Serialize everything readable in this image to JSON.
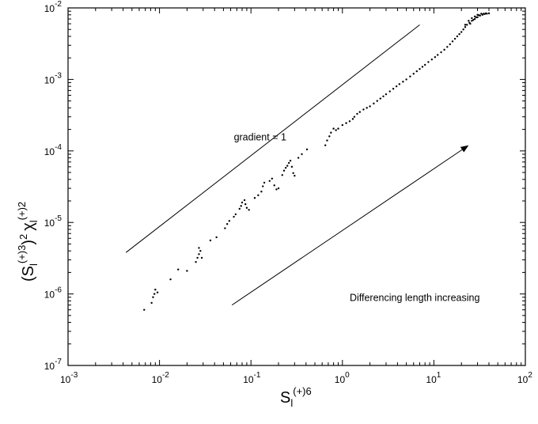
{
  "chart_data": {
    "type": "scatter",
    "title": "",
    "xscale": "log",
    "yscale": "log",
    "xlim": [
      0.001,
      100
    ],
    "ylim": [
      1e-07,
      0.01
    ],
    "grid": false,
    "legend": "none",
    "xlabel": {
      "base": "S",
      "sub": "l",
      "sup": "(+)6"
    },
    "ylabel": {
      "parts": [
        "(S",
        "l",
        "(+)3",
        ")",
        "2",
        "χ",
        "l",
        "(+)2"
      ]
    },
    "x_ticks": [
      {
        "value": 0.001,
        "mant": "10",
        "exp": "-3"
      },
      {
        "value": 0.01,
        "mant": "10",
        "exp": "-2"
      },
      {
        "value": 0.1,
        "mant": "10",
        "exp": "-1"
      },
      {
        "value": 1,
        "mant": "10",
        "exp": "0"
      },
      {
        "value": 10,
        "mant": "10",
        "exp": "1"
      },
      {
        "value": 100,
        "mant": "10",
        "exp": "2"
      }
    ],
    "y_ticks": [
      {
        "value": 1e-07,
        "mant": "10",
        "exp": "-7"
      },
      {
        "value": 1e-06,
        "mant": "10",
        "exp": "-6"
      },
      {
        "value": 1e-05,
        "mant": "10",
        "exp": "-5"
      },
      {
        "value": 0.0001,
        "mant": "10",
        "exp": "-4"
      },
      {
        "value": 0.001,
        "mant": "10",
        "exp": "-3"
      },
      {
        "value": 0.01,
        "mant": "10",
        "exp": "-2"
      }
    ],
    "series": [
      {
        "points": [
          [
            0.0068,
            6e-07
          ],
          [
            0.0082,
            7.5e-07
          ],
          [
            0.0085,
            9e-07
          ],
          [
            0.0088,
            1e-06
          ],
          [
            0.009,
            1.15e-06
          ],
          [
            0.0095,
            1.05e-06
          ],
          [
            0.0132,
            1.6e-06
          ],
          [
            0.016,
            2.2e-06
          ],
          [
            0.02,
            2.1e-06
          ],
          [
            0.025,
            2.8e-06
          ],
          [
            0.026,
            3.2e-06
          ],
          [
            0.027,
            3.6e-06
          ],
          [
            0.027,
            4.4e-06
          ],
          [
            0.028,
            4e-06
          ],
          [
            0.029,
            3.2e-06
          ],
          [
            0.036,
            5.6e-06
          ],
          [
            0.042,
            6.2e-06
          ],
          [
            0.052,
            8.3e-06
          ],
          [
            0.055,
            9.5e-06
          ],
          [
            0.058,
            1.05e-05
          ],
          [
            0.065,
            1.2e-05
          ],
          [
            0.068,
            1.3e-05
          ],
          [
            0.075,
            1.55e-05
          ],
          [
            0.078,
            1.7e-05
          ],
          [
            0.08,
            1.9e-05
          ],
          [
            0.085,
            2.05e-05
          ],
          [
            0.087,
            1.8e-05
          ],
          [
            0.09,
            1.6e-05
          ],
          [
            0.095,
            1.5e-05
          ],
          [
            0.11,
            2.2e-05
          ],
          [
            0.12,
            2.4e-05
          ],
          [
            0.13,
            2.7e-05
          ],
          [
            0.135,
            3.2e-05
          ],
          [
            0.14,
            3.6e-05
          ],
          [
            0.16,
            3.8e-05
          ],
          [
            0.17,
            4.1e-05
          ],
          [
            0.18,
            3.3e-05
          ],
          [
            0.19,
            2.9e-05
          ],
          [
            0.2,
            3e-05
          ],
          [
            0.22,
            4.6e-05
          ],
          [
            0.23,
            5.3e-05
          ],
          [
            0.24,
            5.8e-05
          ],
          [
            0.25,
            6.2e-05
          ],
          [
            0.26,
            6.8e-05
          ],
          [
            0.27,
            7.3e-05
          ],
          [
            0.28,
            6e-05
          ],
          [
            0.29,
            4.9e-05
          ],
          [
            0.3,
            4.5e-05
          ],
          [
            0.33,
            8e-05
          ],
          [
            0.36,
            9e-05
          ],
          [
            0.41,
            0.000105
          ],
          [
            0.65,
            0.00012
          ],
          [
            0.68,
            0.00014
          ],
          [
            0.72,
            0.00016
          ],
          [
            0.75,
            0.00018
          ],
          [
            0.8,
            0.000205
          ],
          [
            0.85,
            0.000195
          ],
          [
            0.9,
            0.000205
          ],
          [
            1.0,
            0.00023
          ],
          [
            1.1,
            0.000245
          ],
          [
            1.2,
            0.00026
          ],
          [
            1.3,
            0.00028
          ],
          [
            1.35,
            0.0003
          ],
          [
            1.45,
            0.00033
          ],
          [
            1.55,
            0.00035
          ],
          [
            1.7,
            0.00038
          ],
          [
            1.85,
            0.0004
          ],
          [
            2.0,
            0.00042
          ],
          [
            2.2,
            0.00046
          ],
          [
            2.4,
            0.0005
          ],
          [
            2.6,
            0.00054
          ],
          [
            2.8,
            0.00058
          ],
          [
            3.0,
            0.00062
          ],
          [
            3.3,
            0.00068
          ],
          [
            3.6,
            0.00074
          ],
          [
            3.9,
            0.0008
          ],
          [
            4.2,
            0.00086
          ],
          [
            4.6,
            0.00093
          ],
          [
            5.0,
            0.001
          ],
          [
            5.5,
            0.0011
          ],
          [
            6.0,
            0.0012
          ],
          [
            6.5,
            0.0013
          ],
          [
            7.0,
            0.0014
          ],
          [
            7.5,
            0.0015
          ],
          [
            8.0,
            0.0016
          ],
          [
            8.7,
            0.00175
          ],
          [
            9.5,
            0.0019
          ],
          [
            10.3,
            0.00205
          ],
          [
            11.0,
            0.0022
          ],
          [
            12.0,
            0.0024
          ],
          [
            13.0,
            0.0026
          ],
          [
            14.0,
            0.00285
          ],
          [
            15.0,
            0.0031
          ],
          [
            16.0,
            0.0034
          ],
          [
            17.0,
            0.0037
          ],
          [
            18.0,
            0.004
          ],
          [
            19.0,
            0.0043
          ],
          [
            20.0,
            0.0046
          ],
          [
            21.0,
            0.005
          ],
          [
            22.0,
            0.0054
          ],
          [
            23.0,
            0.0058
          ],
          [
            24.5,
            0.0062
          ],
          [
            26.0,
            0.0066
          ],
          [
            28.0,
            0.007
          ],
          [
            30.0,
            0.0074
          ],
          [
            32.0,
            0.0078
          ],
          [
            34.0,
            0.008
          ],
          [
            36.0,
            0.0082
          ],
          [
            38.0,
            0.0083
          ],
          [
            40.0,
            0.0084
          ],
          [
            22.0,
            0.0058
          ],
          [
            24.0,
            0.0066
          ],
          [
            26.0,
            0.0072
          ],
          [
            28.0,
            0.0076
          ],
          [
            30.0,
            0.008
          ],
          [
            33.0,
            0.0083
          ],
          [
            25.0,
            0.006
          ],
          [
            27.0,
            0.0068
          ],
          [
            29.0,
            0.0074
          ],
          [
            31.0,
            0.0079
          ],
          [
            35.0,
            0.0083
          ],
          [
            37.0,
            0.0084
          ]
        ]
      }
    ],
    "reference_line": {
      "x": [
        0.0043,
        7.0
      ],
      "y": [
        3.8e-06,
        0.0058
      ]
    },
    "annotations": [
      {
        "text": "gradient = 1",
        "x": 0.065,
        "y": 0.00014
      },
      {
        "text": "Differencing length increasing",
        "x": 1.2,
        "y": 8e-07
      }
    ],
    "arrow": {
      "from": [
        0.062,
        7e-07
      ],
      "to": [
        24.0,
        0.00012
      ]
    }
  }
}
